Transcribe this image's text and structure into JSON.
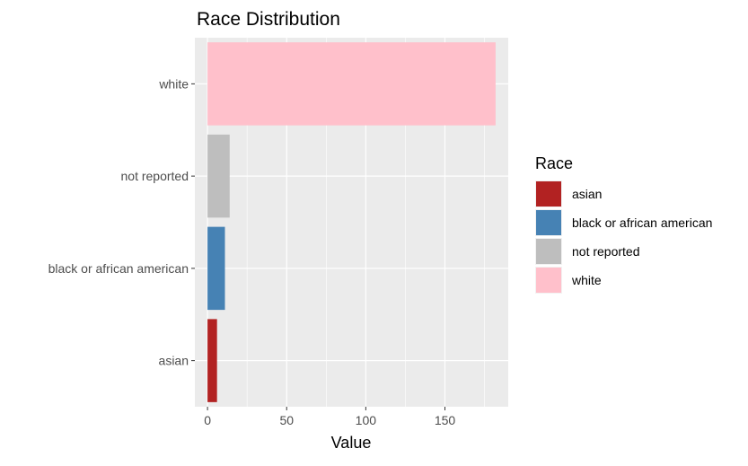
{
  "chart_data": {
    "type": "bar",
    "orientation": "horizontal",
    "title": "Race Distribution",
    "xlabel": "Value",
    "ylabel": "",
    "categories": [
      "asian",
      "black or african american",
      "not reported",
      "white"
    ],
    "values": [
      6,
      11,
      14,
      182
    ],
    "colors": [
      "#B22222",
      "#4682B4",
      "#BEBEBE",
      "#FFC0CB"
    ],
    "xlim": [
      -8,
      190
    ],
    "xticks": [
      0,
      50,
      100,
      150
    ],
    "xtick_labels": [
      "0",
      "50",
      "100",
      "150"
    ],
    "grid": true,
    "panel_background": "#EBEBEB",
    "legend": {
      "title": "Race",
      "position": "right",
      "entries": [
        "asian",
        "black or african american",
        "not reported",
        "white"
      ]
    }
  }
}
